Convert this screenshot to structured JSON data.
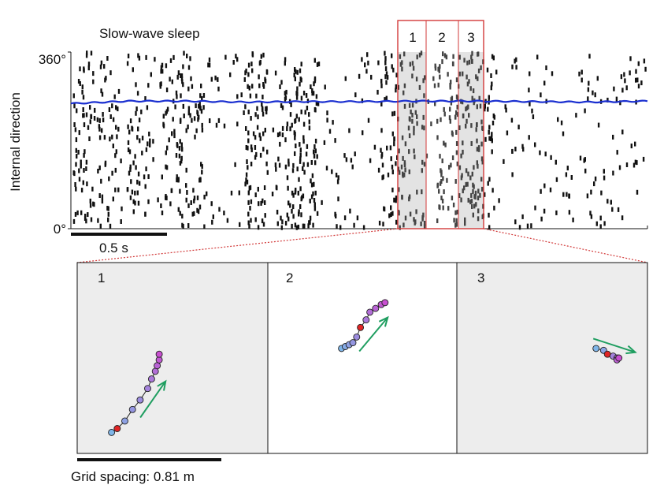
{
  "top_chart": {
    "title": "Slow-wave sleep",
    "ylabel": "Internal direction",
    "yticks": [
      "0°",
      "360°"
    ],
    "scalebar_label": "0.5 s",
    "window_labels": [
      "1",
      "2",
      "3"
    ],
    "colors": {
      "raster": "#111111",
      "decoded_line": "#1a2fd0",
      "highlight_border": "#d23a3a",
      "highlight_fill": "#e3e3e3"
    }
  },
  "bottom_panels": {
    "panel_labels": [
      "1",
      "2",
      "3"
    ],
    "scalebar_label": "Grid spacing: 0.81 m",
    "colors": {
      "panel_fill": "#ededed",
      "arrow": "#1f9e60",
      "red_point": "#e02525",
      "trajectory_start": "#7fb5e8",
      "trajectory_end": "#c84fd0"
    }
  },
  "chart_data": [
    {
      "type": "scatter",
      "subtype": "raster",
      "title": "Slow-wave sleep",
      "xlabel": "",
      "ylabel": "Internal direction",
      "xlim": [
        0,
        3.0
      ],
      "ylim": [
        0,
        360
      ],
      "y_tick_labels": [
        "0°",
        "360°"
      ],
      "time_scalebar_s": 0.5,
      "highlighted_windows_s": [
        [
          1.7,
          1.85
        ],
        [
          1.85,
          2.0
        ],
        [
          2.0,
          2.14
        ]
      ],
      "highlighted_window_labels": [
        "1",
        "2",
        "3"
      ],
      "series": [
        {
          "values_x": [
            0.0,
            0.3,
            0.6,
            0.9,
            1.2,
            1.5,
            1.8,
            2.1,
            2.4,
            2.7,
            3.0
          ],
          "values_y": [
            255,
            260,
            260,
            258,
            259,
            259,
            260,
            260,
            259,
            258,
            260
          ]
        }
      ],
      "grid": false
    },
    {
      "type": "line",
      "subtype": "decoded-trajectory",
      "panel": "1",
      "points": [
        [
          0.18,
          0.11
        ],
        [
          0.21,
          0.13
        ],
        [
          0.25,
          0.17
        ],
        [
          0.29,
          0.23
        ],
        [
          0.33,
          0.28
        ],
        [
          0.37,
          0.34
        ],
        [
          0.39,
          0.39
        ],
        [
          0.41,
          0.43
        ],
        [
          0.42,
          0.46
        ],
        [
          0.43,
          0.49
        ],
        [
          0.43,
          0.52
        ]
      ],
      "highlight_point_index": 1,
      "arrow_direction_deg": 55
    },
    {
      "type": "line",
      "subtype": "decoded-trajectory",
      "panel": "2",
      "points": [
        [
          0.39,
          0.55
        ],
        [
          0.41,
          0.56
        ],
        [
          0.43,
          0.57
        ],
        [
          0.45,
          0.58
        ],
        [
          0.47,
          0.61
        ],
        [
          0.49,
          0.66
        ],
        [
          0.52,
          0.7
        ],
        [
          0.54,
          0.74
        ],
        [
          0.57,
          0.76
        ],
        [
          0.6,
          0.78
        ],
        [
          0.62,
          0.79
        ]
      ],
      "highlight_point_index": 5,
      "arrow_direction_deg": 50
    },
    {
      "type": "line",
      "subtype": "decoded-trajectory",
      "panel": "3",
      "points": [
        [
          0.73,
          0.55
        ],
        [
          0.77,
          0.54
        ],
        [
          0.79,
          0.52
        ],
        [
          0.82,
          0.51
        ],
        [
          0.84,
          0.5
        ],
        [
          0.84,
          0.49
        ],
        [
          0.85,
          0.5
        ]
      ],
      "highlight_point_index": 2,
      "arrow_direction_deg": -18
    }
  ]
}
